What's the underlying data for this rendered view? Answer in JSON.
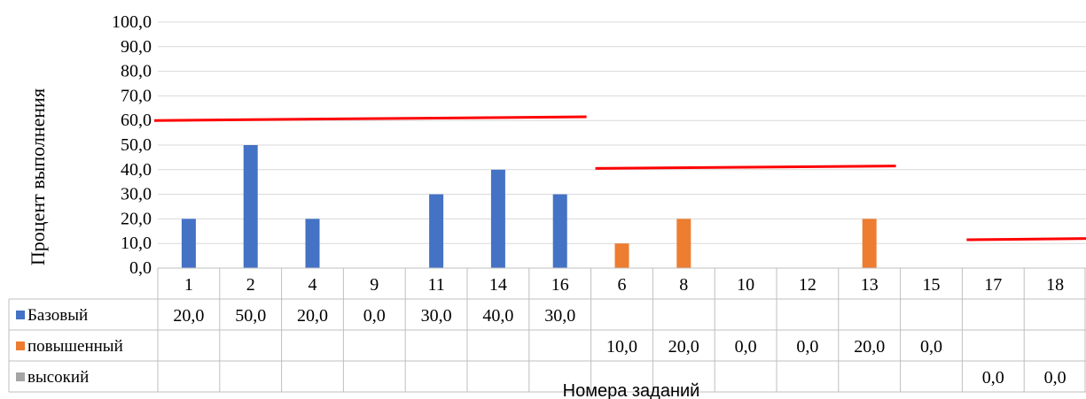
{
  "chart_data": {
    "type": "bar",
    "ylabel": "Процент выполнения",
    "xlabel": "Номера заданий",
    "ylim": [
      0,
      100
    ],
    "yticks": [
      "0,0",
      "10,0",
      "20,0",
      "30,0",
      "40,0",
      "50,0",
      "60,0",
      "70,0",
      "80,0",
      "90,0",
      "100,0"
    ],
    "categories": [
      "1",
      "2",
      "4",
      "9",
      "11",
      "14",
      "16",
      "6",
      "8",
      "10",
      "12",
      "13",
      "15",
      "17",
      "18"
    ],
    "series": [
      {
        "name": "Базовый",
        "color": "#4472C4",
        "values": [
          20,
          50,
          20,
          0,
          30,
          40,
          30,
          null,
          null,
          null,
          null,
          null,
          null,
          null,
          null
        ],
        "labels": [
          "20,0",
          "50,0",
          "20,0",
          "0,0",
          "30,0",
          "40,0",
          "30,0",
          "",
          "",
          "",
          "",
          "",
          "",
          "",
          ""
        ]
      },
      {
        "name": "повышенный",
        "color": "#ED7D31",
        "values": [
          null,
          null,
          null,
          null,
          null,
          null,
          null,
          10,
          20,
          0,
          0,
          20,
          0,
          null,
          null
        ],
        "labels": [
          "",
          "",
          "",
          "",
          "",
          "",
          "",
          "10,0",
          "20,0",
          "0,0",
          "0,0",
          "20,0",
          "0,0",
          "",
          ""
        ]
      },
      {
        "name": "высокий",
        "color": "#A5A5A5",
        "values": [
          null,
          null,
          null,
          null,
          null,
          null,
          null,
          null,
          null,
          null,
          null,
          null,
          null,
          0,
          0
        ],
        "labels": [
          "",
          "",
          "",
          "",
          "",
          "",
          "",
          "",
          "",
          "",
          "",
          "",
          "",
          "0,0",
          "0,0"
        ]
      }
    ],
    "reference_lines": [
      {
        "color": "#FF0000",
        "from": {
          "category_index": 0,
          "value": 60
        },
        "to": {
          "category_index": 6,
          "value": 61.5
        }
      },
      {
        "color": "#FF0000",
        "from": {
          "category_index": 7,
          "value": 40.5
        },
        "to": {
          "category_index": 11,
          "value": 41.5
        }
      },
      {
        "color": "#FF0000",
        "from": {
          "category_index": 13,
          "value": 11.5
        },
        "to": {
          "category_index": 14,
          "value": 12
        }
      }
    ],
    "grid": true,
    "legend": "data-table"
  }
}
